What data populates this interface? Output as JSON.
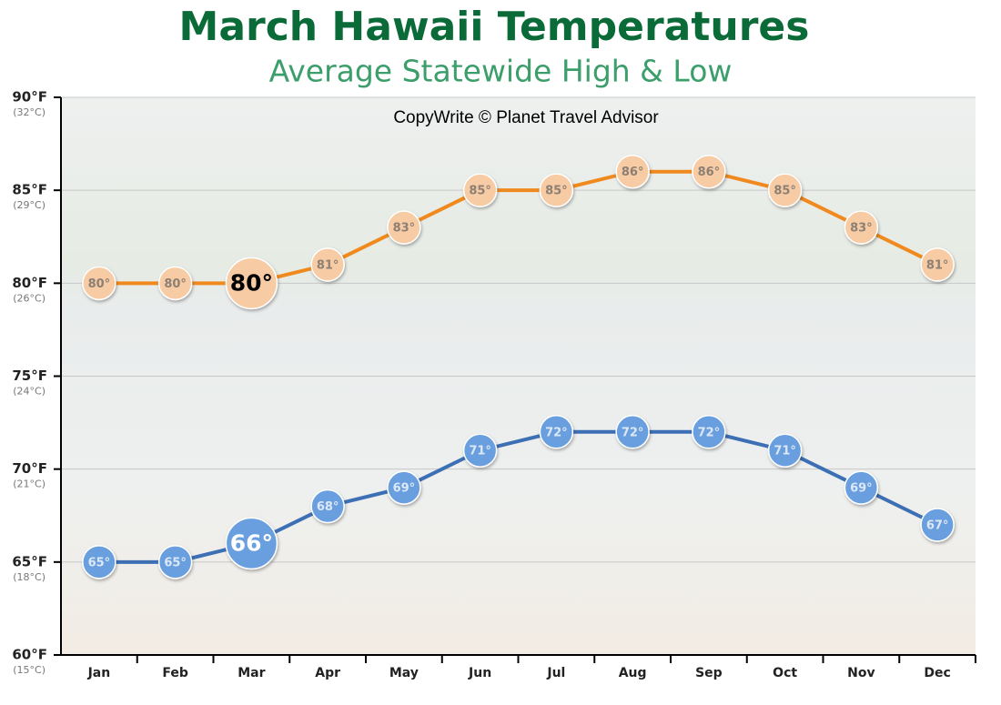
{
  "chart_data": {
    "type": "line",
    "title": "March Hawaii Temperatures",
    "subtitle": "Average Statewide High & Low",
    "annotation": "CopyWrite © Planet Travel Advisor",
    "categories": [
      "Jan",
      "Feb",
      "Mar",
      "Apr",
      "May",
      "Jun",
      "Jul",
      "Aug",
      "Sep",
      "Oct",
      "Nov",
      "Dec"
    ],
    "series": [
      {
        "color": "#f08a1e",
        "marker_color": "#f7cba4",
        "label_color": "#8c7f73",
        "highlight_label_color": "#000000",
        "values": [
          80,
          80,
          80,
          81,
          83,
          85,
          85,
          86,
          86,
          85,
          83,
          81
        ],
        "value_labels": [
          "80°",
          "80°",
          "80°",
          "81°",
          "83°",
          "85°",
          "85°",
          "86°",
          "86°",
          "85°",
          "83°",
          "81°"
        ]
      },
      {
        "color": "#3d6fb5",
        "marker_color": "#6a9fdf",
        "label_color": "#dde8f6",
        "highlight_label_color": "#ffffff",
        "values": [
          65,
          65,
          66,
          68,
          69,
          71,
          72,
          72,
          72,
          71,
          69,
          67
        ],
        "value_labels": [
          "65°",
          "65°",
          "66°",
          "68°",
          "69°",
          "71°",
          "72°",
          "72°",
          "72°",
          "71°",
          "69°",
          "67°"
        ]
      }
    ],
    "highlight_index": 2,
    "ylim": [
      60,
      90
    ],
    "yticks": [
      {
        "value": 60,
        "label": "60°F"
      },
      {
        "value": 65,
        "label": "65°F"
      },
      {
        "value": 70,
        "label": "70°F"
      },
      {
        "value": 75,
        "label": "75°F"
      },
      {
        "value": 80,
        "label": "80°F"
      },
      {
        "value": 85,
        "label": "85°F"
      },
      {
        "value": 90,
        "label": "90°F"
      }
    ],
    "ytick_sublabels": [
      "(15°C)",
      "(18°C)",
      "(21°C)",
      "(24°C)",
      "(26°C)",
      "(29°C)",
      "(32°C)"
    ],
    "grid": true
  }
}
